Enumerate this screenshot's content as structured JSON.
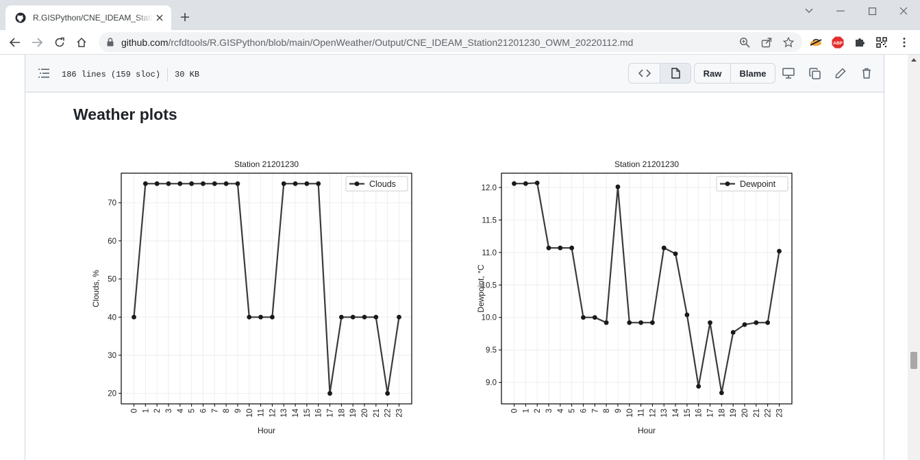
{
  "browser": {
    "tab_title": "R.GISPython/CNE_IDEAM_Station21201230_OWM_20220112.md",
    "url_host": "github.com",
    "url_path": "/rcfdtools/R.GISPython/blob/main/OpenWeather/Output/CNE_IDEAM_Station21201230_OWM_20220112.md",
    "extension_badge": "ABP",
    "icons": [
      "github-icon",
      "close-icon",
      "plus-icon",
      "minimize-icon",
      "maximize-icon",
      "back-icon",
      "forward-icon",
      "reload-icon",
      "home-icon",
      "lock-icon",
      "zoom-icon",
      "share-icon",
      "star-icon",
      "extension-icon",
      "puzzle-icon",
      "qr-icon",
      "menu-icon"
    ]
  },
  "file_header": {
    "lines_info": "186 lines (159 sloc)",
    "size_info": "30 KB",
    "raw_label": "Raw",
    "blame_label": "Blame"
  },
  "content": {
    "heading": "Weather plots"
  },
  "colors": {
    "series": "#3a3a3a",
    "grid": "#eeeeee",
    "abp_badge": "#e32d2d",
    "tab_strip": "#dee1e6"
  },
  "chart_data": [
    {
      "type": "line",
      "title": "Station 21201230",
      "xlabel": "Hour",
      "ylabel": "Clouds, %",
      "x": [
        0,
        1,
        2,
        3,
        4,
        5,
        6,
        7,
        8,
        9,
        10,
        11,
        12,
        13,
        14,
        15,
        16,
        17,
        18,
        19,
        20,
        21,
        22,
        23
      ],
      "ylim": [
        17.25,
        77.75
      ],
      "yticks": [
        20,
        30,
        40,
        50,
        60,
        70
      ],
      "grid": true,
      "legend_position": "top-right",
      "series": [
        {
          "name": "Clouds",
          "values": [
            40,
            75,
            75,
            75,
            75,
            75,
            75,
            75,
            75,
            75,
            40,
            40,
            40,
            75,
            75,
            75,
            75,
            20,
            40,
            40,
            40,
            40,
            20,
            40
          ]
        }
      ]
    },
    {
      "type": "line",
      "title": "Station 21201230",
      "xlabel": "Hour",
      "ylabel": "Dewpoint, °C",
      "x": [
        0,
        1,
        2,
        3,
        4,
        5,
        6,
        7,
        8,
        9,
        10,
        11,
        12,
        13,
        14,
        15,
        16,
        17,
        18,
        19,
        20,
        21,
        22,
        23
      ],
      "ylim": [
        8.67,
        12.22
      ],
      "yticks": [
        "9.0",
        "9.5",
        "10.0",
        "10.5",
        "11.0",
        "11.5",
        "12.0"
      ],
      "grid": true,
      "legend_position": "top-right",
      "series": [
        {
          "name": "Dewpoint",
          "values": [
            12.06,
            12.06,
            12.07,
            11.07,
            11.07,
            11.07,
            10.0,
            10.0,
            9.92,
            12.01,
            9.92,
            9.92,
            9.92,
            11.07,
            10.98,
            10.04,
            8.94,
            9.92,
            8.84,
            9.77,
            9.89,
            9.92,
            9.92,
            11.02
          ]
        }
      ]
    }
  ]
}
